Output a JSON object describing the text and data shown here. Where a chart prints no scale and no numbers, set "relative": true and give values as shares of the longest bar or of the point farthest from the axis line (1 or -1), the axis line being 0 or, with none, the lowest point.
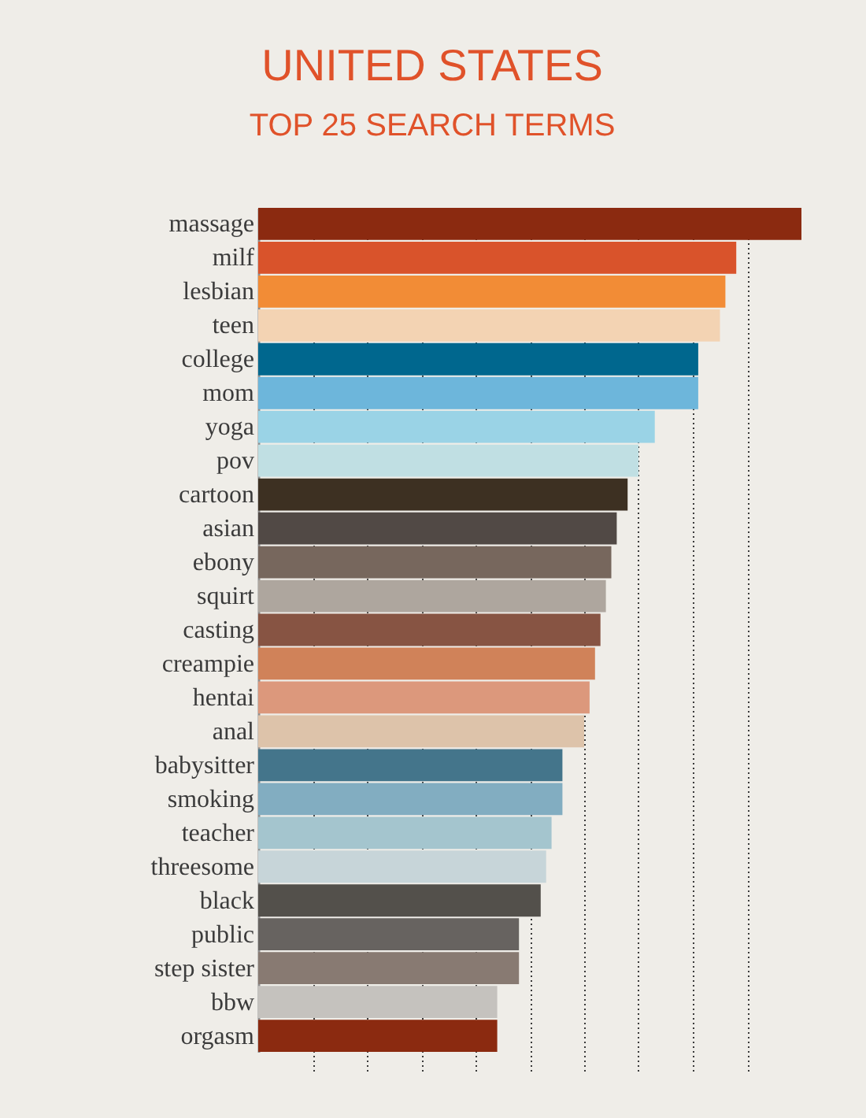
{
  "chart_data": {
    "type": "bar",
    "orientation": "horizontal",
    "relative": true,
    "title": "UNITED STATES",
    "subtitle": "TOP 25 SEARCH TERMS",
    "categories": [
      "massage",
      "milf",
      "lesbian",
      "teen",
      "college",
      "mom",
      "yoga",
      "pov",
      "cartoon",
      "asian",
      "ebony",
      "squirt",
      "casting",
      "creampie",
      "hentai",
      "anal",
      "babysitter",
      "smoking",
      "teacher",
      "threesome",
      "black",
      "public",
      "step sister",
      "bbw",
      "orgasm"
    ],
    "values": [
      1,
      0.88,
      0.86,
      0.85,
      0.81,
      0.81,
      0.73,
      0.7,
      0.68,
      0.66,
      0.65,
      0.64,
      0.63,
      0.62,
      0.61,
      0.6,
      0.56,
      0.56,
      0.54,
      0.53,
      0.52,
      0.48,
      0.48,
      0.44,
      0.44
    ],
    "colors": [
      "#8b2a10",
      "#d9532b",
      "#f28c36",
      "#f3d3b3",
      "#00678e",
      "#6db6db",
      "#9ad3e6",
      "#c0dfe3",
      "#3d3022",
      "#514945",
      "#77675d",
      "#aea69e",
      "#875443",
      "#d08259",
      "#dc987c",
      "#ddc3aa",
      "#44758b",
      "#82adc1",
      "#a4c5ce",
      "#c7d5d9",
      "#53504b",
      "#676360",
      "#887a72",
      "#c5c2be",
      "#8b2a10"
    ],
    "grid": "x"
  }
}
